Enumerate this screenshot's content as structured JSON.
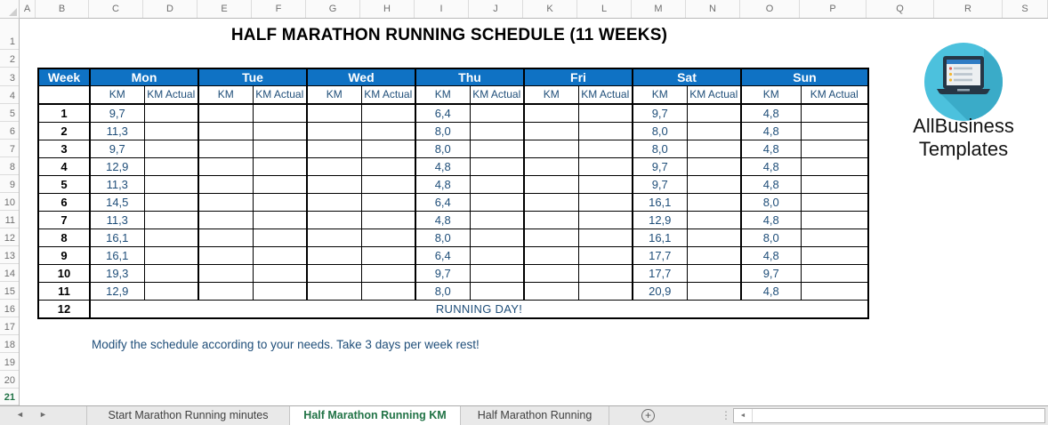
{
  "page": {
    "title": "HALF MARATHON RUNNING SCHEDULE (11 WEEKS)",
    "note": "Modify the schedule according to your needs. Take 3 days per week rest!"
  },
  "grid": {
    "columns": [
      "A",
      "B",
      "C",
      "D",
      "E",
      "F",
      "G",
      "H",
      "I",
      "J",
      "K",
      "L",
      "M",
      "N",
      "O",
      "P",
      "Q",
      "R",
      "S"
    ],
    "rows": [
      "1",
      "2",
      "3",
      "4",
      "5",
      "6",
      "7",
      "8",
      "9",
      "10",
      "11",
      "12",
      "13",
      "14",
      "15",
      "16",
      "17",
      "18",
      "19",
      "20",
      "21"
    ],
    "active_row": "21"
  },
  "schedule": {
    "week_label": "Week",
    "days": [
      "Mon",
      "Tue",
      "Wed",
      "Thu",
      "Fri",
      "Sat",
      "Sun"
    ],
    "sub_headers": [
      "KM",
      "KM Actual"
    ],
    "rows": [
      {
        "week": "1",
        "cells": [
          "9,7",
          "",
          "",
          "",
          "",
          "",
          "6,4",
          "",
          "",
          "",
          "9,7",
          "",
          "4,8",
          ""
        ]
      },
      {
        "week": "2",
        "cells": [
          "11,3",
          "",
          "",
          "",
          "",
          "",
          "8,0",
          "",
          "",
          "",
          "8,0",
          "",
          "4,8",
          ""
        ]
      },
      {
        "week": "3",
        "cells": [
          "9,7",
          "",
          "",
          "",
          "",
          "",
          "8,0",
          "",
          "",
          "",
          "8,0",
          "",
          "4,8",
          ""
        ]
      },
      {
        "week": "4",
        "cells": [
          "12,9",
          "",
          "",
          "",
          "",
          "",
          "4,8",
          "",
          "",
          "",
          "9,7",
          "",
          "4,8",
          ""
        ]
      },
      {
        "week": "5",
        "cells": [
          "11,3",
          "",
          "",
          "",
          "",
          "",
          "4,8",
          "",
          "",
          "",
          "9,7",
          "",
          "4,8",
          ""
        ]
      },
      {
        "week": "6",
        "cells": [
          "14,5",
          "",
          "",
          "",
          "",
          "",
          "6,4",
          "",
          "",
          "",
          "16,1",
          "",
          "8,0",
          ""
        ]
      },
      {
        "week": "7",
        "cells": [
          "11,3",
          "",
          "",
          "",
          "",
          "",
          "4,8",
          "",
          "",
          "",
          "12,9",
          "",
          "4,8",
          ""
        ]
      },
      {
        "week": "8",
        "cells": [
          "16,1",
          "",
          "",
          "",
          "",
          "",
          "8,0",
          "",
          "",
          "",
          "16,1",
          "",
          "8,0",
          ""
        ]
      },
      {
        "week": "9",
        "cells": [
          "16,1",
          "",
          "",
          "",
          "",
          "",
          "6,4",
          "",
          "",
          "",
          "17,7",
          "",
          "4,8",
          ""
        ]
      },
      {
        "week": "10",
        "cells": [
          "19,3",
          "",
          "",
          "",
          "",
          "",
          "9,7",
          "",
          "",
          "",
          "17,7",
          "",
          "9,7",
          ""
        ]
      },
      {
        "week": "11",
        "cells": [
          "12,9",
          "",
          "",
          "",
          "",
          "",
          "8,0",
          "",
          "",
          "",
          "20,9",
          "",
          "4,8",
          ""
        ]
      }
    ],
    "final_week": "12",
    "final_text": "RUNNING DAY!"
  },
  "logo": {
    "line1": "AllBusiness",
    "line2": "Templates"
  },
  "tabs": {
    "items": [
      {
        "label": "Start Marathon Running minutes",
        "active": false
      },
      {
        "label": "Half Marathon Running KM",
        "active": true
      },
      {
        "label": "Half Marathon Running",
        "active": false
      }
    ]
  },
  "icons": {
    "nav_left": "◄",
    "nav_right": "►",
    "add_sheet": "+",
    "dots": "⋮",
    "scroll_left": "◄"
  },
  "colors": {
    "header_blue": "#0F72C4",
    "data_navy": "#1F4E79",
    "excel_green": "#217346",
    "logo_teal": "#4CC1DD",
    "logo_shadow": "#3AABC8"
  }
}
